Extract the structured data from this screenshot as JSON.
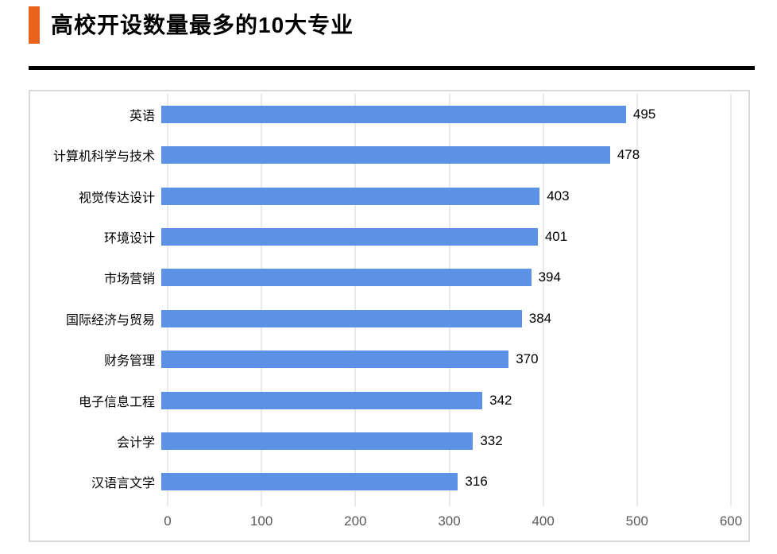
{
  "header": {
    "title": "高校开设数量最多的10大专业",
    "accent_color": "#E8641E"
  },
  "chart_data": {
    "type": "bar",
    "orientation": "horizontal",
    "title": "高校开设数量最多的10大专业",
    "categories": [
      "英语",
      "计算机科学与技术",
      "视觉传达设计",
      "环境设计",
      "市场营销",
      "国际经济与贸易",
      "财务管理",
      "电子信息工程",
      "会计学",
      "汉语言文学"
    ],
    "values": [
      495,
      478,
      403,
      401,
      394,
      384,
      370,
      342,
      332,
      316
    ],
    "value_labels": [
      "495",
      "478",
      "403",
      "401",
      "394",
      "384",
      "370",
      "342",
      "332",
      "316"
    ],
    "xlabel": "",
    "ylabel": "",
    "xlim": [
      0,
      600
    ],
    "x_ticks": [
      0,
      100,
      200,
      300,
      400,
      500,
      600
    ],
    "x_tick_labels": [
      "0",
      "100",
      "200",
      "300",
      "400",
      "500",
      "600"
    ],
    "grid": true,
    "legend": false,
    "bar_color": "#5B92E5",
    "gridline_color": "#D6D6D6",
    "border_color": "#D9D9D9"
  }
}
